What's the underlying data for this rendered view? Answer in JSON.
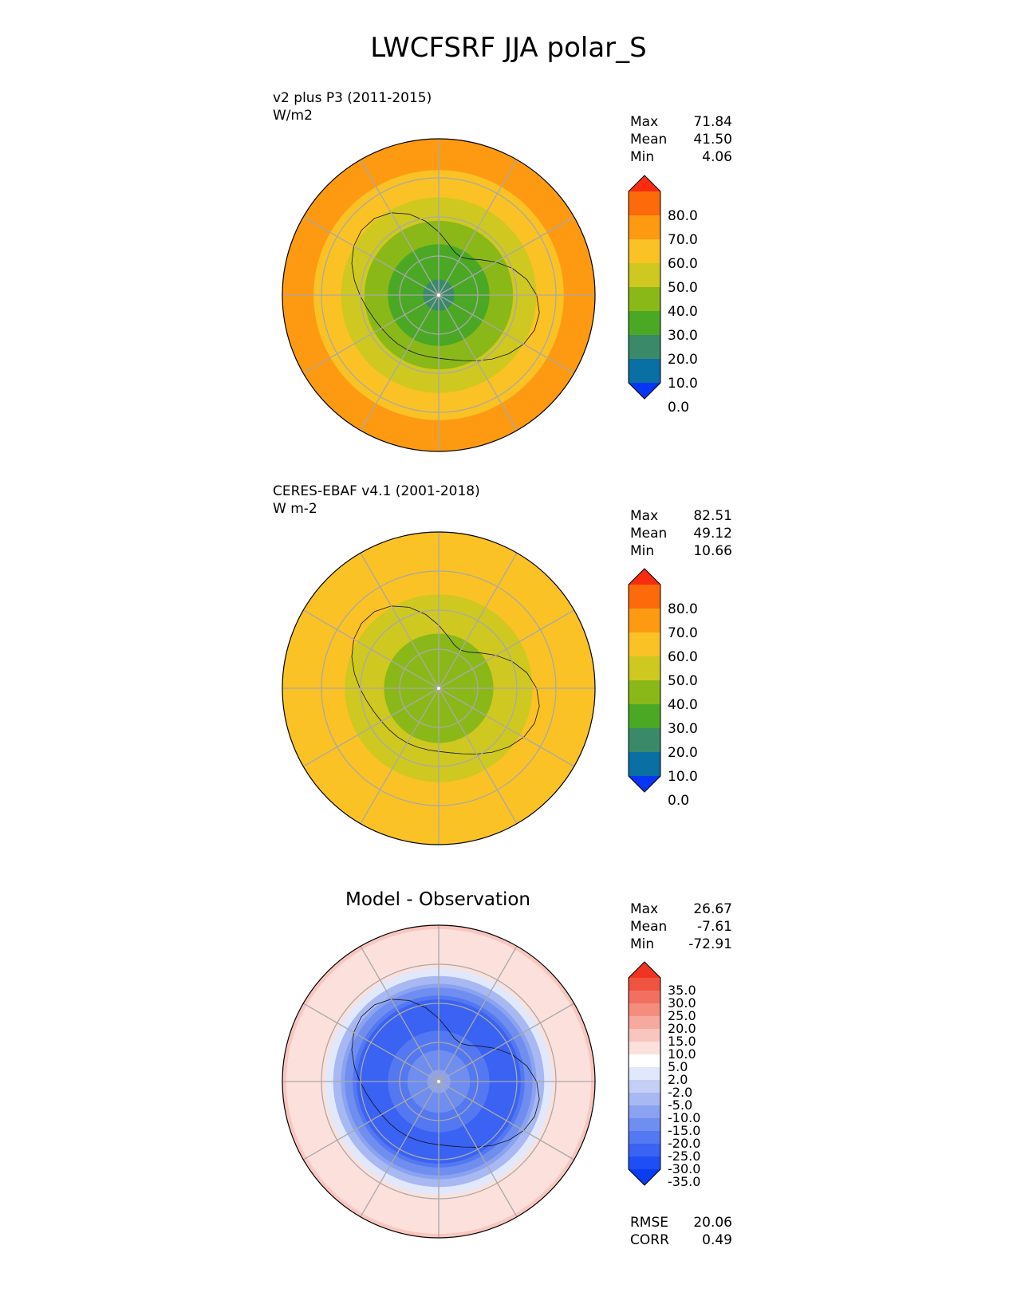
{
  "title": "LWCFSRF JJA polar_S",
  "panels": [
    {
      "label_line1": "v2 plus P3 (2011-2015)",
      "label_line2": "W/m2",
      "stats": [
        {
          "k": "Max",
          "v": "71.84"
        },
        {
          "k": "Mean",
          "v": "41.50"
        },
        {
          "k": "Min",
          "v": "4.06"
        }
      ],
      "colorbar": {
        "ticks": [
          "80.0",
          "70.0",
          "60.0",
          "50.0",
          "40.0",
          "30.0",
          "20.0",
          "10.0",
          "0.0"
        ],
        "colors": [
          "#0535f5",
          "#0a6fa3",
          "#3a8a6a",
          "#4aa825",
          "#8ab818",
          "#cfc820",
          "#fac224",
          "#fd9a12",
          "#fc6a0a",
          "#fa2c10"
        ]
      }
    },
    {
      "label_line1": "CERES-EBAF v4.1 (2001-2018)",
      "label_line2": "W m-2",
      "stats": [
        {
          "k": "Max",
          "v": "82.51"
        },
        {
          "k": "Mean",
          "v": "49.12"
        },
        {
          "k": "Min",
          "v": "10.66"
        }
      ],
      "colorbar": {
        "ticks": [
          "80.0",
          "70.0",
          "60.0",
          "50.0",
          "40.0",
          "30.0",
          "20.0",
          "10.0",
          "0.0"
        ],
        "colors": [
          "#0535f5",
          "#0a6fa3",
          "#3a8a6a",
          "#4aa825",
          "#8ab818",
          "#cfc820",
          "#fac224",
          "#fd9a12",
          "#fc6a0a",
          "#fa2c10"
        ]
      }
    },
    {
      "title": "Model - Observation",
      "stats": [
        {
          "k": "Max",
          "v": "26.67"
        },
        {
          "k": "Mean",
          "v": "-7.61"
        },
        {
          "k": "Min",
          "v": "-72.91"
        }
      ],
      "metrics": [
        {
          "k": "RMSE",
          "v": "20.06"
        },
        {
          "k": "CORR",
          "v": "0.49"
        }
      ],
      "colorbar": {
        "ticks": [
          "35.0",
          "30.0",
          "25.0",
          "20.0",
          "15.0",
          "10.0",
          "5.0",
          "2.0",
          "-2.0",
          "-5.0",
          "-10.0",
          "-15.0",
          "-20.0",
          "-25.0",
          "-30.0",
          "-35.0"
        ],
        "colors": [
          "#0a3cf2",
          "#1f4ef4",
          "#3a62f3",
          "#5478f1",
          "#6f8ef0",
          "#8aa2f0",
          "#a7b8f2",
          "#c4cff6",
          "#e2e8fb",
          "#ffffff",
          "#fbe0dc",
          "#f9c6bf",
          "#f6a99e",
          "#f48d7e",
          "#f2705f",
          "#f15341",
          "#ef3522"
        ]
      }
    }
  ],
  "chart_data": [
    {
      "type": "heatmap",
      "projection": "south polar stereographic",
      "title": "v2 plus P3 (2011-2015)",
      "units": "W/m2",
      "stats": {
        "max": 71.84,
        "mean": 41.5,
        "min": 4.06
      },
      "levels": [
        0,
        10,
        20,
        30,
        40,
        50,
        60,
        70,
        80
      ],
      "radial_profile": [
        {
          "lat": -90,
          "value": 15
        },
        {
          "lat": -80,
          "value": 25
        },
        {
          "lat": -70,
          "value": 40
        },
        {
          "lat": -60,
          "value": 58
        },
        {
          "lat": -50,
          "value": 65
        }
      ]
    },
    {
      "type": "heatmap",
      "projection": "south polar stereographic",
      "title": "CERES-EBAF v4.1 (2001-2018)",
      "units": "W m-2",
      "stats": {
        "max": 82.51,
        "mean": 49.12,
        "min": 10.66
      },
      "levels": [
        0,
        10,
        20,
        30,
        40,
        50,
        60,
        70,
        80
      ],
      "radial_profile": [
        {
          "lat": -90,
          "value": 30
        },
        {
          "lat": -80,
          "value": 35
        },
        {
          "lat": -70,
          "value": 45
        },
        {
          "lat": -60,
          "value": 55
        },
        {
          "lat": -50,
          "value": 55
        }
      ]
    },
    {
      "type": "heatmap",
      "projection": "south polar stereographic",
      "title": "Model - Observation",
      "stats": {
        "max": 26.67,
        "mean": -7.61,
        "min": -72.91,
        "rmse": 20.06,
        "corr": 0.49
      },
      "levels": [
        -35,
        -30,
        -25,
        -20,
        -15,
        -10,
        -5,
        -2,
        2,
        5,
        10,
        15,
        20,
        25,
        30,
        35
      ],
      "radial_profile": [
        {
          "lat": -90,
          "value": -12
        },
        {
          "lat": -80,
          "value": -22
        },
        {
          "lat": -70,
          "value": -30
        },
        {
          "lat": -60,
          "value": 5
        },
        {
          "lat": -50,
          "value": 10
        }
      ]
    }
  ]
}
